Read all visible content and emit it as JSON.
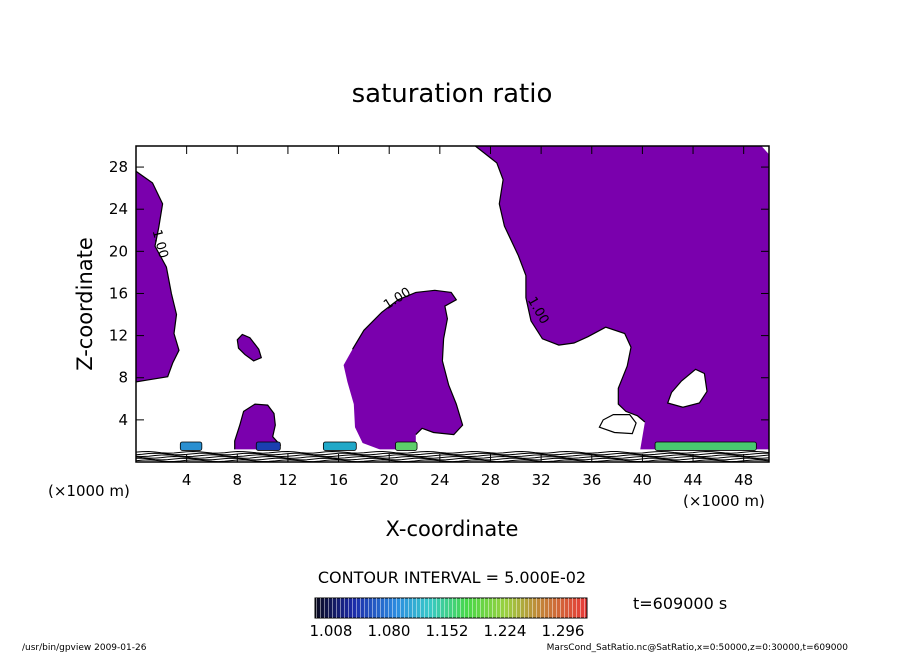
{
  "chart_data": {
    "type": "contour",
    "title": "saturation ratio",
    "xlabel": "X-coordinate",
    "ylabel": "Z-coordinate",
    "x_unit": "(×1000 m)",
    "y_unit": "(×1000 m)",
    "xlim": [
      0,
      50
    ],
    "ylim": [
      0,
      30
    ],
    "x_ticks": [
      4,
      8,
      12,
      16,
      20,
      24,
      28,
      32,
      36,
      40,
      44,
      48
    ],
    "y_ticks": [
      4,
      8,
      12,
      16,
      20,
      24,
      28
    ],
    "contour_interval_text": "CONTOUR INTERVAL = 5.000E-02",
    "contour_label": "1.00",
    "fill_color": "#7a00ad",
    "time_label": "t=609000 s",
    "colorbar": {
      "ticks": [
        "1.008",
        "1.080",
        "1.152",
        "1.224",
        "1.296"
      ]
    },
    "footer_left": "/usr/bin/gpview   2009-01-26",
    "footer_right": "MarsCond_SatRatio.nc@SatRatio,x=0:50000,z=0:30000,t=609000",
    "regions": [
      {
        "name": "left-edge-region",
        "points": [
          [
            0,
            27.6
          ],
          [
            1.3,
            26.5
          ],
          [
            2.1,
            24.5
          ],
          [
            1.8,
            22.3
          ],
          [
            1.5,
            20.5
          ],
          [
            2.4,
            18.5
          ],
          [
            2.8,
            16
          ],
          [
            3.2,
            14
          ],
          [
            3,
            12.2
          ],
          [
            3.4,
            10.6
          ],
          [
            2.9,
            9.4
          ],
          [
            2.5,
            8.1
          ],
          [
            1,
            7.8
          ],
          [
            0,
            7.6
          ]
        ]
      },
      {
        "name": "right-big-region",
        "points": [
          [
            26.8,
            30
          ],
          [
            28.5,
            28.4
          ],
          [
            29,
            26.8
          ],
          [
            28.7,
            24.5
          ],
          [
            29.1,
            22.4
          ],
          [
            30.2,
            19.6
          ],
          [
            30.8,
            17.7
          ],
          [
            30.8,
            15.6
          ],
          [
            31.2,
            13.4
          ],
          [
            32.1,
            11.7
          ],
          [
            33.4,
            11.1
          ],
          [
            34.6,
            11.3
          ],
          [
            35.7,
            11.9
          ],
          [
            37.1,
            12.8
          ],
          [
            38.6,
            12.2
          ],
          [
            39.1,
            10.9
          ],
          [
            38.8,
            9.1
          ],
          [
            38.1,
            7
          ],
          [
            38.1,
            5.5
          ],
          [
            38.7,
            4.8
          ],
          [
            39.6,
            4.4
          ],
          [
            40.2,
            3.8
          ],
          [
            39.8,
            1
          ],
          [
            50,
            1
          ],
          [
            50,
            29.2
          ],
          [
            49.4,
            30
          ]
        ]
      },
      {
        "name": "center-plume-region",
        "points": [
          [
            17.1,
            10.7
          ],
          [
            18,
            12.5
          ],
          [
            19.4,
            14.2
          ],
          [
            20.7,
            15.4
          ],
          [
            22.1,
            16.1
          ],
          [
            23.6,
            16.3
          ],
          [
            24.9,
            16.1
          ],
          [
            25.3,
            15.4
          ],
          [
            24.4,
            14.8
          ],
          [
            24.6,
            13.6
          ],
          [
            24.3,
            11.7
          ],
          [
            24.2,
            9.6
          ],
          [
            24.7,
            7.3
          ],
          [
            25.3,
            5.5
          ],
          [
            25.8,
            3.5
          ],
          [
            25.1,
            2.6
          ],
          [
            23.5,
            2.8
          ],
          [
            22.6,
            3.2
          ],
          [
            22.1,
            2.6
          ],
          [
            22.1,
            1.3
          ],
          [
            19.7,
            1
          ],
          [
            17.9,
            1.8
          ],
          [
            17.3,
            3.3
          ],
          [
            17.2,
            5.5
          ],
          [
            16.7,
            7.6
          ],
          [
            16.4,
            9.2
          ]
        ]
      },
      {
        "name": "small-bump-region",
        "points": [
          [
            7.8,
            2
          ],
          [
            8.2,
            3.5
          ],
          [
            8.5,
            4.8
          ],
          [
            9.4,
            5.5
          ],
          [
            10.4,
            5.4
          ],
          [
            10.9,
            4.6
          ],
          [
            11,
            3.5
          ],
          [
            10.8,
            2.4
          ],
          [
            11.4,
            1.6
          ],
          [
            11.2,
            1
          ],
          [
            7.8,
            1
          ]
        ]
      },
      {
        "name": "small-blob-region",
        "points": [
          [
            8,
            11.6
          ],
          [
            8.4,
            12.1
          ],
          [
            9,
            11.8
          ],
          [
            9.7,
            10.7
          ],
          [
            9.9,
            9.9
          ],
          [
            9.3,
            9.6
          ],
          [
            8.6,
            10.2
          ],
          [
            8.1,
            10.8
          ]
        ]
      }
    ],
    "holes": [
      {
        "name": "hole-1",
        "points": [
          [
            36.6,
            3.3
          ],
          [
            37.8,
            2.8
          ],
          [
            39.2,
            2.7
          ],
          [
            39.5,
            3.7
          ],
          [
            39,
            4.5
          ],
          [
            37.7,
            4.5
          ],
          [
            36.9,
            4
          ]
        ]
      },
      {
        "name": "hole-2",
        "points": [
          [
            42,
            5.6
          ],
          [
            43.2,
            5.2
          ],
          [
            44.5,
            5.6
          ],
          [
            45.1,
            6.7
          ],
          [
            44.9,
            8.4
          ],
          [
            44.2,
            8.8
          ],
          [
            43.1,
            7.7
          ],
          [
            42.3,
            6.6
          ]
        ]
      }
    ],
    "contour_lines": [
      {
        "name": "left-contour",
        "points": [
          [
            0,
            27.6
          ],
          [
            1.3,
            26.5
          ],
          [
            2.1,
            24.5
          ],
          [
            1.8,
            22.3
          ],
          [
            1.5,
            20.5
          ],
          [
            2.4,
            18.5
          ],
          [
            2.8,
            16
          ],
          [
            3.2,
            14
          ],
          [
            3,
            12.2
          ],
          [
            3.4,
            10.6
          ],
          [
            2.9,
            9.4
          ],
          [
            2.5,
            8.1
          ],
          [
            1,
            7.8
          ],
          [
            0,
            7.6
          ]
        ]
      },
      {
        "name": "right-contour",
        "points": [
          [
            26.8,
            30
          ],
          [
            28.5,
            28.4
          ],
          [
            29,
            26.8
          ],
          [
            28.7,
            24.5
          ],
          [
            29.1,
            22.4
          ],
          [
            30.2,
            19.6
          ],
          [
            30.8,
            17.7
          ],
          [
            30.8,
            15.6
          ],
          [
            31.2,
            13.4
          ],
          [
            32.1,
            11.7
          ],
          [
            33.4,
            11.1
          ],
          [
            34.6,
            11.3
          ],
          [
            35.7,
            11.9
          ],
          [
            37.1,
            12.8
          ],
          [
            38.6,
            12.2
          ],
          [
            39.1,
            10.9
          ],
          [
            38.8,
            9.1
          ],
          [
            38.1,
            7
          ],
          [
            38.1,
            5.5
          ],
          [
            38.7,
            4.8
          ],
          [
            39.6,
            4.4
          ],
          [
            40.2,
            3.8
          ]
        ]
      },
      {
        "name": "plume-contour",
        "points": [
          [
            17.1,
            10.7
          ],
          [
            18,
            12.5
          ],
          [
            19.4,
            14.2
          ],
          [
            20.7,
            15.4
          ],
          [
            22.1,
            16.1
          ],
          [
            23.6,
            16.3
          ],
          [
            24.9,
            16.1
          ],
          [
            25.3,
            15.4
          ],
          [
            24.4,
            14.8
          ],
          [
            24.6,
            13.6
          ],
          [
            24.3,
            11.7
          ],
          [
            24.2,
            9.6
          ],
          [
            24.7,
            7.3
          ],
          [
            25.3,
            5.5
          ],
          [
            25.8,
            3.5
          ],
          [
            25.1,
            2.6
          ],
          [
            23.5,
            2.8
          ],
          [
            22.6,
            3.2
          ],
          [
            22.1,
            2.6
          ]
        ]
      }
    ],
    "contour_label_positions": [
      {
        "name": "label-left",
        "x": 1.6,
        "y": 20.6,
        "angle": 75
      },
      {
        "name": "label-plume",
        "x": 20.8,
        "y": 15.2,
        "angle": -32
      },
      {
        "name": "label-right",
        "x": 31.5,
        "y": 14.2,
        "angle": 60
      }
    ],
    "surface_patches": [
      {
        "name": "patch-4km",
        "x0": 3.5,
        "x1": 5.2,
        "color": "#2a8fd0"
      },
      {
        "name": "patch-9km",
        "x0": 9.5,
        "x1": 11.4,
        "color": "#1a3fb0"
      },
      {
        "name": "patch-15km",
        "x0": 14.8,
        "x1": 17.4,
        "color": "#20a8c8"
      },
      {
        "name": "patch-21km",
        "x0": 20.5,
        "x1": 22.2,
        "color": "#5ccf6a"
      },
      {
        "name": "patch-44km",
        "x0": 41,
        "x1": 49,
        "color": "#48c870"
      }
    ]
  }
}
